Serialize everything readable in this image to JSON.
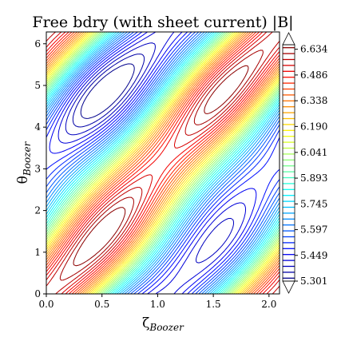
{
  "chart_data": {
    "type": "contour",
    "title": "Free bdry (with sheet current) |B|",
    "xlabel": {
      "main": "ζ",
      "sub": "Boozer"
    },
    "ylabel": {
      "main": "θ",
      "sub": "Boozer"
    },
    "xlim": [
      0,
      2.0944
    ],
    "ylim": [
      0,
      6.2832
    ],
    "xticks": [
      0.0,
      0.5,
      1.0,
      1.5,
      2.0
    ],
    "xtick_labels": [
      "0.0",
      "0.5",
      "1.0",
      "1.5",
      "2.0"
    ],
    "yticks": [
      0,
      1,
      2,
      3,
      4,
      5,
      6
    ],
    "ytick_labels": [
      "0",
      "1",
      "2",
      "3",
      "4",
      "5",
      "6"
    ],
    "colormap": "jet",
    "colorbar": {
      "ticks": [
        6.634,
        6.486,
        6.338,
        6.19,
        6.041,
        5.893,
        5.745,
        5.597,
        5.449,
        5.301
      ],
      "tick_labels": [
        "6.634",
        "6.486",
        "6.338",
        "6.190",
        "6.041",
        "5.893",
        "5.745",
        "5.597",
        "5.449",
        "5.301"
      ],
      "min": 5.301,
      "max": 6.66,
      "extend": "both"
    },
    "grid": false
  }
}
